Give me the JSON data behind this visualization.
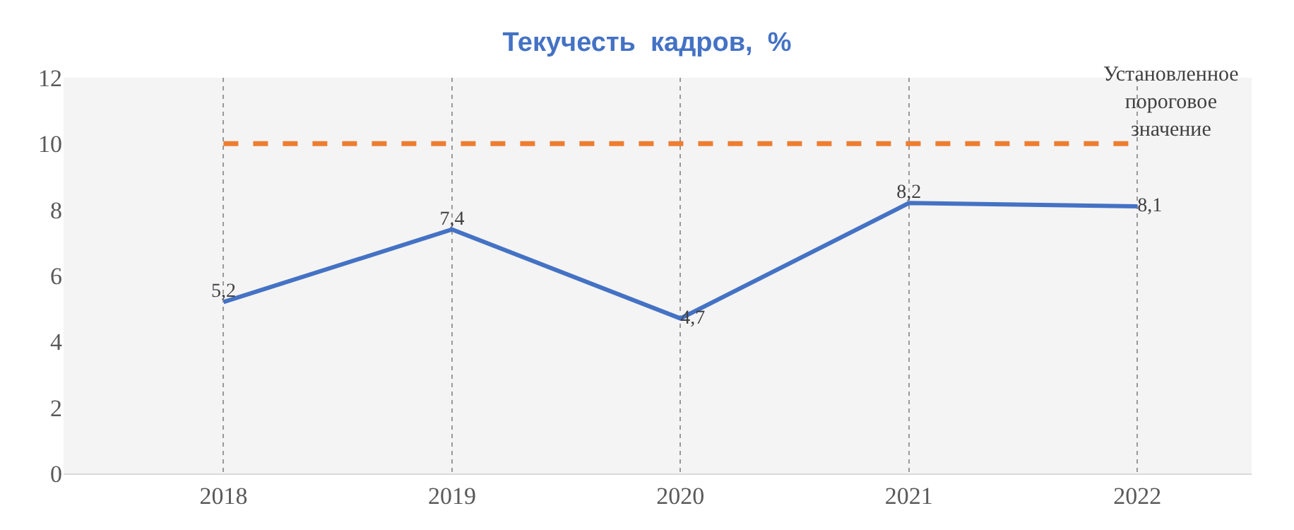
{
  "chart_data": {
    "type": "line",
    "title": "Текучесть  кадров,  %",
    "categories": [
      "2018",
      "2019",
      "2020",
      "2021",
      "2022"
    ],
    "series": [
      {
        "color": "#4472c4",
        "values": [
          5.2,
          7.4,
          4.7,
          8.2,
          8.1
        ],
        "value_labels": [
          "5,2",
          "7,4",
          "4,7",
          "8,2",
          "8,1"
        ]
      }
    ],
    "ref_lines": [
      {
        "axis": "y",
        "value": 10,
        "label": "Установленное пороговое значение",
        "color": "#ed7d31",
        "line_style": "dashed"
      }
    ],
    "ylim": [
      0,
      12
    ],
    "yticks": [
      0,
      2,
      4,
      6,
      8,
      10,
      12
    ],
    "grid": "x",
    "marker": "none",
    "line_style": "solid"
  }
}
